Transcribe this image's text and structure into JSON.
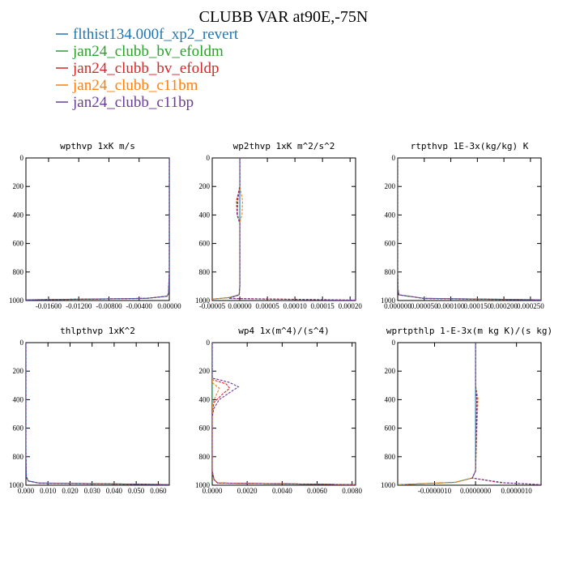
{
  "title": "CLUBB VAR at90E,-75N",
  "legend": [
    {
      "label": "flthist134.000f_xp2_revert",
      "color": "#1f77b4"
    },
    {
      "label": "jan24_clubb_bv_efoldm",
      "color": "#2ca02c"
    },
    {
      "label": "jan24_clubb_bv_efoldp",
      "color": "#d62728"
    },
    {
      "label": "jan24_clubb_c11bm",
      "color": "#ff7f0e"
    },
    {
      "label": "jan24_clubb_c11bp",
      "color": "#6a3d9a"
    }
  ],
  "chart_data": [
    {
      "type": "line",
      "title": "wpthvp  1xK m/s",
      "xlim": [
        -0.019,
        0.0
      ],
      "xticks": [
        "-0.01600",
        "-0.01200",
        "-0.00800",
        "-0.00400",
        "0.00000"
      ],
      "ylim": [
        1000,
        0
      ],
      "yticks": [
        "0",
        "200",
        "400",
        "600",
        "800",
        "1000"
      ],
      "series": [
        {
          "color": "#1f77b4",
          "x": [
            0.0,
            0.0,
            0.0,
            -0.0001,
            -0.0003,
            -0.003,
            -0.019
          ],
          "y": [
            0,
            400,
            800,
            950,
            970,
            985,
            995
          ]
        },
        {
          "color": "#2ca02c",
          "x": [
            0.0,
            0.0,
            0.0,
            -0.0001,
            -0.0003,
            -0.003,
            -0.019
          ],
          "y": [
            0,
            400,
            800,
            950,
            970,
            985,
            995
          ]
        },
        {
          "color": "#d62728",
          "x": [
            0.0,
            0.0,
            0.0,
            -0.0001,
            -0.0003,
            -0.0032,
            -0.019
          ],
          "y": [
            0,
            400,
            800,
            950,
            970,
            985,
            996
          ]
        },
        {
          "color": "#ff7f0e",
          "x": [
            0.0,
            0.0,
            0.0,
            -0.0001,
            -0.0003,
            -0.003,
            -0.019
          ],
          "y": [
            0,
            400,
            800,
            950,
            970,
            985,
            995
          ]
        },
        {
          "color": "#6a3d9a",
          "x": [
            0.0,
            0.0,
            0.0,
            -0.0001,
            -0.0003,
            -0.0031,
            -0.019
          ],
          "y": [
            0,
            400,
            800,
            950,
            970,
            985,
            996
          ]
        }
      ]
    },
    {
      "type": "line",
      "title": "wp2thvp  1xK m^2/s^2",
      "xlim": [
        -5e-05,
        0.00021
      ],
      "xticks": [
        "-0.00005",
        "0.00000",
        "0.00005",
        "0.00010",
        "0.00015",
        "0.00020"
      ],
      "ylim": [
        1000,
        0
      ],
      "yticks": [
        "0",
        "200",
        "400",
        "600",
        "800",
        "1000"
      ],
      "series": [
        {
          "color": "#1f77b4",
          "x": [
            0.0,
            0.0,
            0.0,
            0.0,
            0.0,
            0.0,
            -1e-06,
            -2e-05,
            -5e-05
          ],
          "y": [
            0,
            200,
            300,
            420,
            600,
            900,
            960,
            980,
            990
          ]
        },
        {
          "color": "#2ca02c",
          "x": [
            0.0,
            0.0,
            -5e-06,
            -4e-06,
            0.0,
            0.0,
            -1e-06,
            -2e-05,
            -5e-05
          ],
          "y": [
            0,
            200,
            300,
            400,
            450,
            900,
            960,
            980,
            990
          ]
        },
        {
          "color": "#d62728",
          "x": [
            0.0,
            0.0,
            -6e-06,
            -5e-06,
            0.0,
            0.0,
            -1e-06,
            -2e-05,
            0.00021
          ],
          "y": [
            0,
            200,
            300,
            400,
            450,
            900,
            960,
            985,
            997
          ]
        },
        {
          "color": "#ff7f0e",
          "x": [
            0.0,
            0.0,
            5e-06,
            4e-06,
            0.0,
            0.0,
            -1e-06,
            -2e-05,
            -5e-05
          ],
          "y": [
            0,
            200,
            300,
            400,
            450,
            900,
            960,
            980,
            990
          ]
        },
        {
          "color": "#6a3d9a",
          "x": [
            0.0,
            0.0,
            -3e-06,
            -5e-06,
            0.0,
            0.0,
            -1e-06,
            -2e-05,
            0.00021
          ],
          "y": [
            0,
            200,
            280,
            400,
            460,
            900,
            960,
            986,
            998
          ]
        }
      ]
    },
    {
      "type": "line",
      "title": "rtpthvp  1E-3x(kg/kg) K",
      "xlim": [
        0.0,
        0.00027
      ],
      "xticks": [
        "0.000000",
        "0.000050",
        "0.000100",
        "0.000150",
        "0.000200",
        "0.000250"
      ],
      "ylim": [
        1000,
        0
      ],
      "yticks": [
        "0",
        "200",
        "400",
        "600",
        "800",
        "1000"
      ],
      "series": [
        {
          "color": "#1f77b4",
          "x": [
            0.0,
            0.0,
            0.0,
            5e-07,
            2e-06,
            5e-05,
            0.00027
          ],
          "y": [
            0,
            400,
            800,
            920,
            960,
            985,
            995
          ]
        },
        {
          "color": "#2ca02c",
          "x": [
            0.0,
            0.0,
            0.0,
            5e-07,
            2e-06,
            5e-05,
            0.00027
          ],
          "y": [
            0,
            400,
            800,
            920,
            960,
            985,
            995
          ]
        },
        {
          "color": "#d62728",
          "x": [
            0.0,
            0.0,
            0.0,
            5e-07,
            2e-06,
            5e-05,
            0.00027
          ],
          "y": [
            0,
            400,
            800,
            920,
            960,
            986,
            996
          ]
        },
        {
          "color": "#ff7f0e",
          "x": [
            0.0,
            0.0,
            0.0,
            5e-07,
            2e-06,
            5e-05,
            0.00027
          ],
          "y": [
            0,
            400,
            800,
            920,
            960,
            985,
            995
          ]
        },
        {
          "color": "#6a3d9a",
          "x": [
            0.0,
            0.0,
            0.0,
            5e-07,
            2e-06,
            5e-05,
            0.00027
          ],
          "y": [
            0,
            400,
            800,
            920,
            960,
            986,
            996
          ]
        }
      ]
    },
    {
      "type": "line",
      "title": "thlpthvp  1xK^2",
      "xlim": [
        0.0,
        0.065
      ],
      "xticks": [
        "0.000",
        "0.010",
        "0.020",
        "0.030",
        "0.040",
        "0.050",
        "0.060"
      ],
      "ylim": [
        1000,
        0
      ],
      "yticks": [
        "0",
        "200",
        "400",
        "600",
        "800",
        "1000"
      ],
      "series": [
        {
          "color": "#1f77b4",
          "x": [
            0.0,
            0.0,
            0.0,
            0.0002,
            0.001,
            0.006,
            0.065
          ],
          "y": [
            0,
            400,
            800,
            940,
            970,
            985,
            995
          ]
        },
        {
          "color": "#2ca02c",
          "x": [
            0.0,
            0.0,
            0.0,
            0.0002,
            0.001,
            0.006,
            0.065
          ],
          "y": [
            0,
            400,
            800,
            940,
            970,
            985,
            995
          ]
        },
        {
          "color": "#d62728",
          "x": [
            0.0,
            0.0,
            0.0,
            0.0002,
            0.001,
            0.006,
            0.065
          ],
          "y": [
            0,
            400,
            800,
            940,
            970,
            986,
            996
          ]
        },
        {
          "color": "#ff7f0e",
          "x": [
            0.0,
            0.0,
            0.0,
            0.0002,
            0.001,
            0.006,
            0.065
          ],
          "y": [
            0,
            400,
            800,
            940,
            970,
            985,
            995
          ]
        },
        {
          "color": "#6a3d9a",
          "x": [
            0.0,
            0.0,
            0.0,
            0.0002,
            0.001,
            0.006,
            0.065
          ],
          "y": [
            0,
            400,
            800,
            940,
            970,
            986,
            996
          ]
        }
      ]
    },
    {
      "type": "line",
      "title": "wp4  1x(m^4)/(s^4)",
      "xlim": [
        0.0,
        0.0082
      ],
      "xticks": [
        "0.0000",
        "0.0020",
        "0.0040",
        "0.0060",
        "0.0080"
      ],
      "ylim": [
        1000,
        0
      ],
      "yticks": [
        "0",
        "200",
        "400",
        "600",
        "800",
        "1000"
      ],
      "series": [
        {
          "color": "#1f77b4",
          "x": [
            0.0,
            0.0,
            0.0,
            0.0,
            0.0,
            0.0001,
            0.0003,
            0.0082
          ],
          "y": [
            0,
            200,
            400,
            600,
            900,
            960,
            985,
            996
          ]
        },
        {
          "color": "#2ca02c",
          "x": [
            0.0,
            0.0,
            0.0,
            0.0,
            0.0,
            0.0001,
            0.0003,
            0.0082
          ],
          "y": [
            0,
            200,
            400,
            600,
            900,
            960,
            985,
            996
          ]
        },
        {
          "color": "#d62728",
          "x": [
            0.0,
            0.0,
            0.0003,
            0.0008,
            0.001,
            0.0006,
            0.0001,
            0.0,
            0.0,
            0.0001,
            0.0003,
            0.0082
          ],
          "y": [
            0,
            260,
            270,
            290,
            320,
            360,
            420,
            500,
            900,
            960,
            985,
            996
          ]
        },
        {
          "color": "#ff7f0e",
          "x": [
            0.0,
            0.0,
            0.0002,
            0.0004,
            0.0003,
            0.0001,
            0.0,
            0.0,
            0.0001,
            0.0003,
            0.0082
          ],
          "y": [
            0,
            280,
            300,
            320,
            350,
            400,
            450,
            900,
            960,
            985,
            996
          ]
        },
        {
          "color": "#6a3d9a",
          "x": [
            0.0,
            0.0,
            0.0004,
            0.001,
            0.0015,
            0.001,
            0.0004,
            0.0001,
            0.0,
            0.0,
            0.0001,
            0.0003,
            0.0082
          ],
          "y": [
            0,
            250,
            260,
            280,
            310,
            350,
            400,
            460,
            520,
            900,
            960,
            985,
            996
          ]
        }
      ]
    },
    {
      "type": "line",
      "title": "wprtpthlp  1-E-3x(m kg K)/(s kg)",
      "xlim": [
        -1.9e-06,
        1.6e-06
      ],
      "xticks": [
        "-0.0000010",
        "0.0000000",
        "0.0000010"
      ],
      "ylim": [
        1000,
        0
      ],
      "yticks": [
        "0",
        "200",
        "400",
        "600",
        "800",
        "1000"
      ],
      "series": [
        {
          "color": "#1f77b4",
          "x": [
            0.0,
            0.0,
            0.0,
            0.0,
            -8e-08,
            -5e-07,
            -1.9e-06
          ],
          "y": [
            0,
            300,
            450,
            900,
            950,
            980,
            997
          ]
        },
        {
          "color": "#2ca02c",
          "x": [
            0.0,
            0.0,
            3e-08,
            0.0,
            -8e-08,
            -5e-07,
            -1.9e-06
          ],
          "y": [
            0,
            300,
            400,
            900,
            950,
            980,
            997
          ]
        },
        {
          "color": "#d62728",
          "x": [
            0.0,
            0.0,
            3e-08,
            0.0,
            -8e-08,
            6e-07,
            1.6e-06
          ],
          "y": [
            0,
            300,
            400,
            900,
            950,
            982,
            996
          ]
        },
        {
          "color": "#ff7f0e",
          "x": [
            0.0,
            0.0,
            6e-08,
            0.0,
            -8e-08,
            -5e-07,
            -1.9e-06
          ],
          "y": [
            0,
            300,
            390,
            900,
            950,
            980,
            997
          ]
        },
        {
          "color": "#6a3d9a",
          "x": [
            0.0,
            0.0,
            4e-08,
            0.0,
            -8e-08,
            7e-07,
            1.6e-06
          ],
          "y": [
            0,
            300,
            400,
            900,
            950,
            983,
            996
          ]
        }
      ]
    }
  ]
}
